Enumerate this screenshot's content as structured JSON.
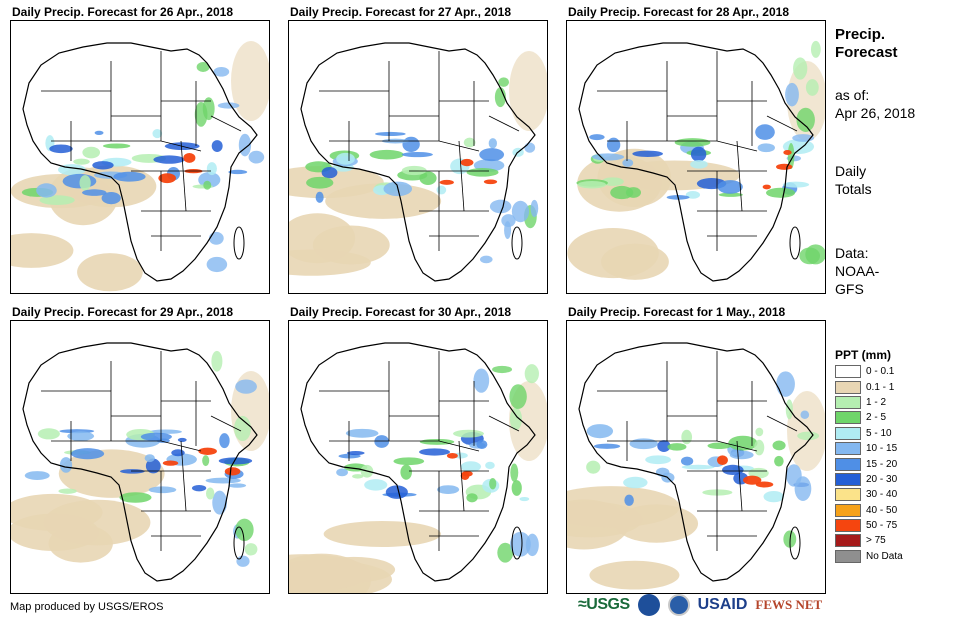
{
  "panels": [
    {
      "title": "Daily Precip. Forecast for 26 Apr., 2018"
    },
    {
      "title": "Daily Precip. Forecast for 27 Apr., 2018"
    },
    {
      "title": "Daily Precip. Forecast for 28 Apr., 2018"
    },
    {
      "title": "Daily Precip. Forecast for 29 Apr., 2018"
    },
    {
      "title": "Daily Precip. Forecast for 30 Apr., 2018"
    },
    {
      "title": "Daily Precip. Forecast for 1 May., 2018"
    }
  ],
  "sidebar": {
    "title_line1": "Precip.",
    "title_line2": "Forecast",
    "asof_line1": "as of:",
    "asof_line2": "Apr 26, 2018",
    "totals_line1": "Daily",
    "totals_line2": "Totals",
    "data_line1": "Data:",
    "data_line2": "NOAA-",
    "data_line3": "GFS"
  },
  "legend": {
    "title": "PPT (mm)",
    "items": [
      {
        "label": "0 - 0.1",
        "color": "#ffffff"
      },
      {
        "label": "0.1 - 1",
        "color": "#e8d6b4"
      },
      {
        "label": "1 - 2",
        "color": "#b5efb1"
      },
      {
        "label": "2 - 5",
        "color": "#6fd56a"
      },
      {
        "label": "5 - 10",
        "color": "#b0ecf3"
      },
      {
        "label": "10 - 15",
        "color": "#84b8f0"
      },
      {
        "label": "15 - 20",
        "color": "#4f8fe6"
      },
      {
        "label": "20 - 30",
        "color": "#245fd6"
      },
      {
        "label": "30 - 40",
        "color": "#fbe38a"
      },
      {
        "label": "40 - 50",
        "color": "#f6a21a"
      },
      {
        "label": "50 - 75",
        "color": "#f5450f"
      },
      {
        "label": "> 75",
        "color": "#a61a1a"
      },
      {
        "label": "No Data",
        "color": "#8f8f8f"
      }
    ]
  },
  "footer": {
    "credit": "Map produced by USGS/EROS",
    "logo_usgs": "≈USGS",
    "logo_noaa": "NOAA",
    "logo_usaid": "USAID",
    "logo_fews": "FEWS NET"
  }
}
